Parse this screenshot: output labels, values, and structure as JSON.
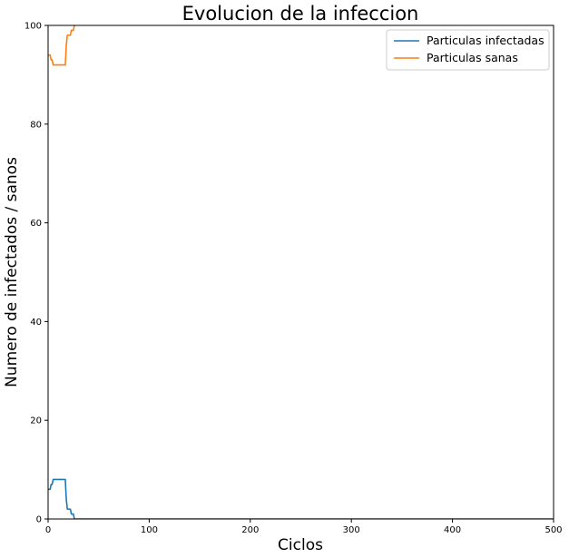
{
  "chart_data": {
    "type": "line",
    "title": "Evolucion de la infeccion",
    "xlabel": "Ciclos",
    "ylabel": "Numero de infectados / sanos",
    "xlim": [
      0,
      500
    ],
    "ylim": [
      0,
      100
    ],
    "xticks": [
      "0",
      "100",
      "200",
      "300",
      "400",
      "500"
    ],
    "yticks": [
      "0",
      "20",
      "40",
      "60",
      "80",
      "100"
    ],
    "grid": false,
    "legend_position": "top-right",
    "series": [
      {
        "name": "Particulas infectadas",
        "color": "#1f77b4",
        "x": [
          0,
          2,
          3,
          4,
          5,
          17,
          18,
          19,
          20,
          22,
          23,
          24,
          25,
          26,
          27,
          500
        ],
        "y": [
          6,
          6,
          7,
          7,
          8,
          8,
          4,
          2,
          2,
          2,
          1,
          1,
          1,
          0,
          0,
          0
        ]
      },
      {
        "name": "Particulas sanas",
        "color": "#ff7f0e",
        "x": [
          0,
          2,
          3,
          4,
          5,
          17,
          18,
          19,
          20,
          22,
          23,
          24,
          25,
          26,
          27
        ],
        "y": [
          94,
          94,
          93,
          93,
          92,
          92,
          96,
          98,
          98,
          98,
          99,
          99,
          99,
          100,
          100
        ]
      }
    ]
  }
}
